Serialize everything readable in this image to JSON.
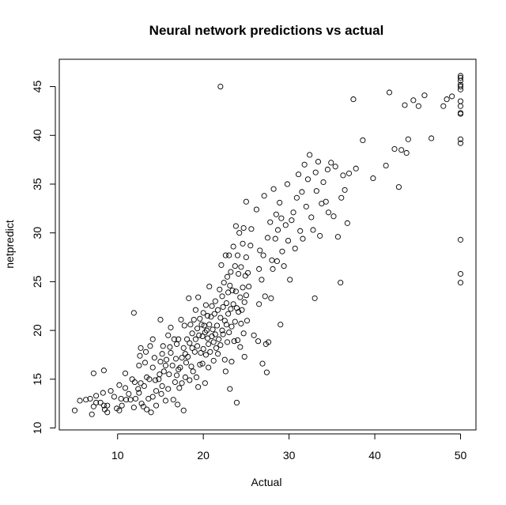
{
  "chart_data": {
    "type": "scatter",
    "title": "Neural network predictions vs actual",
    "xlabel": "Actual",
    "ylabel": "netpredict",
    "xlim": [
      3.2,
      51.8
    ],
    "ylim": [
      9.8,
      47.8
    ],
    "xticks": [
      10,
      20,
      30,
      40,
      50
    ],
    "yticks": [
      10,
      15,
      20,
      25,
      30,
      35,
      40,
      45
    ],
    "grid": false,
    "legend": "none",
    "series": [
      {
        "marker": "open-circle",
        "points": [
          [
            5.0,
            11.8
          ],
          [
            5.6,
            12.8
          ],
          [
            6.3,
            12.9
          ],
          [
            6.8,
            13.0
          ],
          [
            7.0,
            11.4
          ],
          [
            7.2,
            12.2
          ],
          [
            7.2,
            15.6
          ],
          [
            7.5,
            12.6
          ],
          [
            7.5,
            13.3
          ],
          [
            8.0,
            12.6
          ],
          [
            8.3,
            13.6
          ],
          [
            8.4,
            12.3
          ],
          [
            8.4,
            15.9
          ],
          [
            8.5,
            11.9
          ],
          [
            8.8,
            11.6
          ],
          [
            8.8,
            12.3
          ],
          [
            9.2,
            13.8
          ],
          [
            9.6,
            13.2
          ],
          [
            9.9,
            12.0
          ],
          [
            10.2,
            14.4
          ],
          [
            10.2,
            11.8
          ],
          [
            10.4,
            13.0
          ],
          [
            10.5,
            12.3
          ],
          [
            10.9,
            14.1
          ],
          [
            10.9,
            15.6
          ],
          [
            11.0,
            12.9
          ],
          [
            11.3,
            13.5
          ],
          [
            11.5,
            12.9
          ],
          [
            11.7,
            15.0
          ],
          [
            11.9,
            21.8
          ],
          [
            11.9,
            12.1
          ],
          [
            12.0,
            14.7
          ],
          [
            12.1,
            13.0
          ],
          [
            12.4,
            14.0
          ],
          [
            12.5,
            13.6
          ],
          [
            12.5,
            16.4
          ],
          [
            12.6,
            17.4
          ],
          [
            12.7,
            18.2
          ],
          [
            12.7,
            14.6
          ],
          [
            12.8,
            12.5
          ],
          [
            13.0,
            12.2
          ],
          [
            13.1,
            14.3
          ],
          [
            13.2,
            16.7
          ],
          [
            13.3,
            17.8
          ],
          [
            13.4,
            11.9
          ],
          [
            13.4,
            15.2
          ],
          [
            13.6,
            13.0
          ],
          [
            13.7,
            15.0
          ],
          [
            13.8,
            18.4
          ],
          [
            13.9,
            11.6
          ],
          [
            14.1,
            13.2
          ],
          [
            14.1,
            16.2
          ],
          [
            14.1,
            19.1
          ],
          [
            14.3,
            17.2
          ],
          [
            14.4,
            14.9
          ],
          [
            14.5,
            12.3
          ],
          [
            14.5,
            13.8
          ],
          [
            14.8,
            15.0
          ],
          [
            14.9,
            15.5
          ],
          [
            15.0,
            16.8
          ],
          [
            15.0,
            21.1
          ],
          [
            15.1,
            13.5
          ],
          [
            15.2,
            14.3
          ],
          [
            15.2,
            17.6
          ],
          [
            15.3,
            18.4
          ],
          [
            15.4,
            15.8
          ],
          [
            15.6,
            12.8
          ],
          [
            15.6,
            16.4
          ],
          [
            15.7,
            17.0
          ],
          [
            15.9,
            14.0
          ],
          [
            15.9,
            19.5
          ],
          [
            16.0,
            15.5
          ],
          [
            16.1,
            18.3
          ],
          [
            16.2,
            17.7
          ],
          [
            16.2,
            20.3
          ],
          [
            16.4,
            16.4
          ],
          [
            16.5,
            12.9
          ],
          [
            16.6,
            19.1
          ],
          [
            16.7,
            14.7
          ],
          [
            16.8,
            17.1
          ],
          [
            16.9,
            15.4
          ],
          [
            16.9,
            18.6
          ],
          [
            17.0,
            12.4
          ],
          [
            17.1,
            16.0
          ],
          [
            17.1,
            19.1
          ],
          [
            17.2,
            14.1
          ],
          [
            17.3,
            16.2
          ],
          [
            17.4,
            21.1
          ],
          [
            17.5,
            14.6
          ],
          [
            17.5,
            17.2
          ],
          [
            17.7,
            11.8
          ],
          [
            17.7,
            18.2
          ],
          [
            17.8,
            20.5
          ],
          [
            17.9,
            15.2
          ],
          [
            17.9,
            17.6
          ],
          [
            18.0,
            16.7
          ],
          [
            18.1,
            19.1
          ],
          [
            18.2,
            17.3
          ],
          [
            18.3,
            23.3
          ],
          [
            18.4,
            18.7
          ],
          [
            18.4,
            14.9
          ],
          [
            18.5,
            20.6
          ],
          [
            18.6,
            16.3
          ],
          [
            18.7,
            18.2
          ],
          [
            18.7,
            19.7
          ],
          [
            18.8,
            15.8
          ],
          [
            18.9,
            21.1
          ],
          [
            19.0,
            17.8
          ],
          [
            19.1,
            22.1
          ],
          [
            19.1,
            19.1
          ],
          [
            19.2,
            15.2
          ],
          [
            19.3,
            18.4
          ],
          [
            19.3,
            20.2
          ],
          [
            19.4,
            23.4
          ],
          [
            19.4,
            14.2
          ],
          [
            19.5,
            19.5
          ],
          [
            19.6,
            16.5
          ],
          [
            19.6,
            21.2
          ],
          [
            19.7,
            17.7
          ],
          [
            19.8,
            20.6
          ],
          [
            19.9,
            19.4
          ],
          [
            19.9,
            16.6
          ],
          [
            20.0,
            21.8
          ],
          [
            20.0,
            18.1
          ],
          [
            20.1,
            20.5
          ],
          [
            20.2,
            14.6
          ],
          [
            20.2,
            19.8
          ],
          [
            20.3,
            22.6
          ],
          [
            20.3,
            17.5
          ],
          [
            20.4,
            20.0
          ],
          [
            20.5,
            19.2
          ],
          [
            20.5,
            21.5
          ],
          [
            20.6,
            16.2
          ],
          [
            20.6,
            18.6
          ],
          [
            20.7,
            20.6
          ],
          [
            20.7,
            24.5
          ],
          [
            20.8,
            17.8
          ],
          [
            20.9,
            21.4
          ],
          [
            21.0,
            19.4
          ],
          [
            21.0,
            22.5
          ],
          [
            21.1,
            20.1
          ],
          [
            21.2,
            18.8
          ],
          [
            21.2,
            16.9
          ],
          [
            21.3,
            21.7
          ],
          [
            21.4,
            23.0
          ],
          [
            21.4,
            19.6
          ],
          [
            21.5,
            18.2
          ],
          [
            21.6,
            20.5
          ],
          [
            21.7,
            22.1
          ],
          [
            21.7,
            17.6
          ],
          [
            21.8,
            19.1
          ],
          [
            21.9,
            24.2
          ],
          [
            22.0,
            45.0
          ],
          [
            22.0,
            21.3
          ],
          [
            22.0,
            18.5
          ],
          [
            22.1,
            26.7
          ],
          [
            22.2,
            20.0
          ],
          [
            22.2,
            23.5
          ],
          [
            22.3,
            22.4
          ],
          [
            22.3,
            19.6
          ],
          [
            22.4,
            24.9
          ],
          [
            22.5,
            17.0
          ],
          [
            22.5,
            21.0
          ],
          [
            22.6,
            27.7
          ],
          [
            22.6,
            15.8
          ],
          [
            22.7,
            22.8
          ],
          [
            22.7,
            20.6
          ],
          [
            22.8,
            25.5
          ],
          [
            22.8,
            18.8
          ],
          [
            22.9,
            23.9
          ],
          [
            22.9,
            21.7
          ],
          [
            23.0,
            27.7
          ],
          [
            23.0,
            19.8
          ],
          [
            23.1,
            24.6
          ],
          [
            23.1,
            14.0
          ],
          [
            23.2,
            22.2
          ],
          [
            23.2,
            26.0
          ],
          [
            23.3,
            20.4
          ],
          [
            23.3,
            16.8
          ],
          [
            23.4,
            24.1
          ],
          [
            23.5,
            28.6
          ],
          [
            23.5,
            22.7
          ],
          [
            23.6,
            18.9
          ],
          [
            23.7,
            26.6
          ],
          [
            23.7,
            20.9
          ],
          [
            23.8,
            24.0
          ],
          [
            23.8,
            30.7
          ],
          [
            23.9,
            12.6
          ],
          [
            23.9,
            22.3
          ],
          [
            24.0,
            27.7
          ],
          [
            24.0,
            19.0
          ],
          [
            24.1,
            25.8
          ],
          [
            24.1,
            21.9
          ],
          [
            24.2,
            30.0
          ],
          [
            24.3,
            23.4
          ],
          [
            24.3,
            18.3
          ],
          [
            24.4,
            20.7
          ],
          [
            24.4,
            26.5
          ],
          [
            24.5,
            22.1
          ],
          [
            24.6,
            28.9
          ],
          [
            24.6,
            24.4
          ],
          [
            24.7,
            19.7
          ],
          [
            24.7,
            30.5
          ],
          [
            24.8,
            22.9
          ],
          [
            24.8,
            17.3
          ],
          [
            24.9,
            25.6
          ],
          [
            25.0,
            33.2
          ],
          [
            25.0,
            23.6
          ],
          [
            25.0,
            27.5
          ],
          [
            25.1,
            21.0
          ],
          [
            25.2,
            25.9
          ],
          [
            25.3,
            24.5
          ],
          [
            25.5,
            28.7
          ],
          [
            25.6,
            30.4
          ],
          [
            25.9,
            19.5
          ],
          [
            26.2,
            32.4
          ],
          [
            26.4,
            18.9
          ],
          [
            26.5,
            26.3
          ],
          [
            26.5,
            22.7
          ],
          [
            26.6,
            28.2
          ],
          [
            26.8,
            25.2
          ],
          [
            26.9,
            16.6
          ],
          [
            27.0,
            27.7
          ],
          [
            27.1,
            33.8
          ],
          [
            27.2,
            23.5
          ],
          [
            27.3,
            18.6
          ],
          [
            27.4,
            15.7
          ],
          [
            27.5,
            29.5
          ],
          [
            27.6,
            18.8
          ],
          [
            27.8,
            31.1
          ],
          [
            27.9,
            23.3
          ],
          [
            28.0,
            27.2
          ],
          [
            28.1,
            26.3
          ],
          [
            28.2,
            34.5
          ],
          [
            28.4,
            29.4
          ],
          [
            28.5,
            31.9
          ],
          [
            28.6,
            27.1
          ],
          [
            28.7,
            30.3
          ],
          [
            28.9,
            33.1
          ],
          [
            29.0,
            20.6
          ],
          [
            29.1,
            31.5
          ],
          [
            29.2,
            28.1
          ],
          [
            29.4,
            26.6
          ],
          [
            29.6,
            30.8
          ],
          [
            29.8,
            35.0
          ],
          [
            29.9,
            29.2
          ],
          [
            30.1,
            25.2
          ],
          [
            30.3,
            31.3
          ],
          [
            30.5,
            32.1
          ],
          [
            30.7,
            28.4
          ],
          [
            30.9,
            33.6
          ],
          [
            31.1,
            36.0
          ],
          [
            31.3,
            30.2
          ],
          [
            31.5,
            34.2
          ],
          [
            31.6,
            29.4
          ],
          [
            31.8,
            37.0
          ],
          [
            32.0,
            32.7
          ],
          [
            32.2,
            35.5
          ],
          [
            32.4,
            38.0
          ],
          [
            32.6,
            31.6
          ],
          [
            32.8,
            30.3
          ],
          [
            33.0,
            23.3
          ],
          [
            33.1,
            36.2
          ],
          [
            33.2,
            34.3
          ],
          [
            33.4,
            37.3
          ],
          [
            33.6,
            29.7
          ],
          [
            33.8,
            33.0
          ],
          [
            34.0,
            35.2
          ],
          [
            34.3,
            33.2
          ],
          [
            34.5,
            36.5
          ],
          [
            34.6,
            32.1
          ],
          [
            34.9,
            37.2
          ],
          [
            35.2,
            31.7
          ],
          [
            35.4,
            36.8
          ],
          [
            35.7,
            29.6
          ],
          [
            36.0,
            24.9
          ],
          [
            36.1,
            33.6
          ],
          [
            36.3,
            35.9
          ],
          [
            36.5,
            34.4
          ],
          [
            36.8,
            31.0
          ],
          [
            37.0,
            36.1
          ],
          [
            37.5,
            43.7
          ],
          [
            37.8,
            36.6
          ],
          [
            38.6,
            39.5
          ],
          [
            39.8,
            35.6
          ],
          [
            41.3,
            36.9
          ],
          [
            41.7,
            44.4
          ],
          [
            42.3,
            38.6
          ],
          [
            42.8,
            34.7
          ],
          [
            43.1,
            38.5
          ],
          [
            43.5,
            43.1
          ],
          [
            43.7,
            38.2
          ],
          [
            43.9,
            39.6
          ],
          [
            44.5,
            43.6
          ],
          [
            45.1,
            43.0
          ],
          [
            45.8,
            44.1
          ],
          [
            46.6,
            39.7
          ],
          [
            48.0,
            43.0
          ],
          [
            48.4,
            43.7
          ],
          [
            49.0,
            44.0
          ],
          [
            50.0,
            24.9
          ],
          [
            50.0,
            25.8
          ],
          [
            50.0,
            29.3
          ],
          [
            50.0,
            39.2
          ],
          [
            50.0,
            39.6
          ],
          [
            50.0,
            42.2
          ],
          [
            50.0,
            42.3
          ],
          [
            50.0,
            43.0
          ],
          [
            50.0,
            43.5
          ],
          [
            50.0,
            44.7
          ],
          [
            50.0,
            45.0
          ],
          [
            50.0,
            45.2
          ],
          [
            50.0,
            45.6
          ],
          [
            50.0,
            45.9
          ],
          [
            50.0,
            46.1
          ]
        ]
      }
    ]
  }
}
